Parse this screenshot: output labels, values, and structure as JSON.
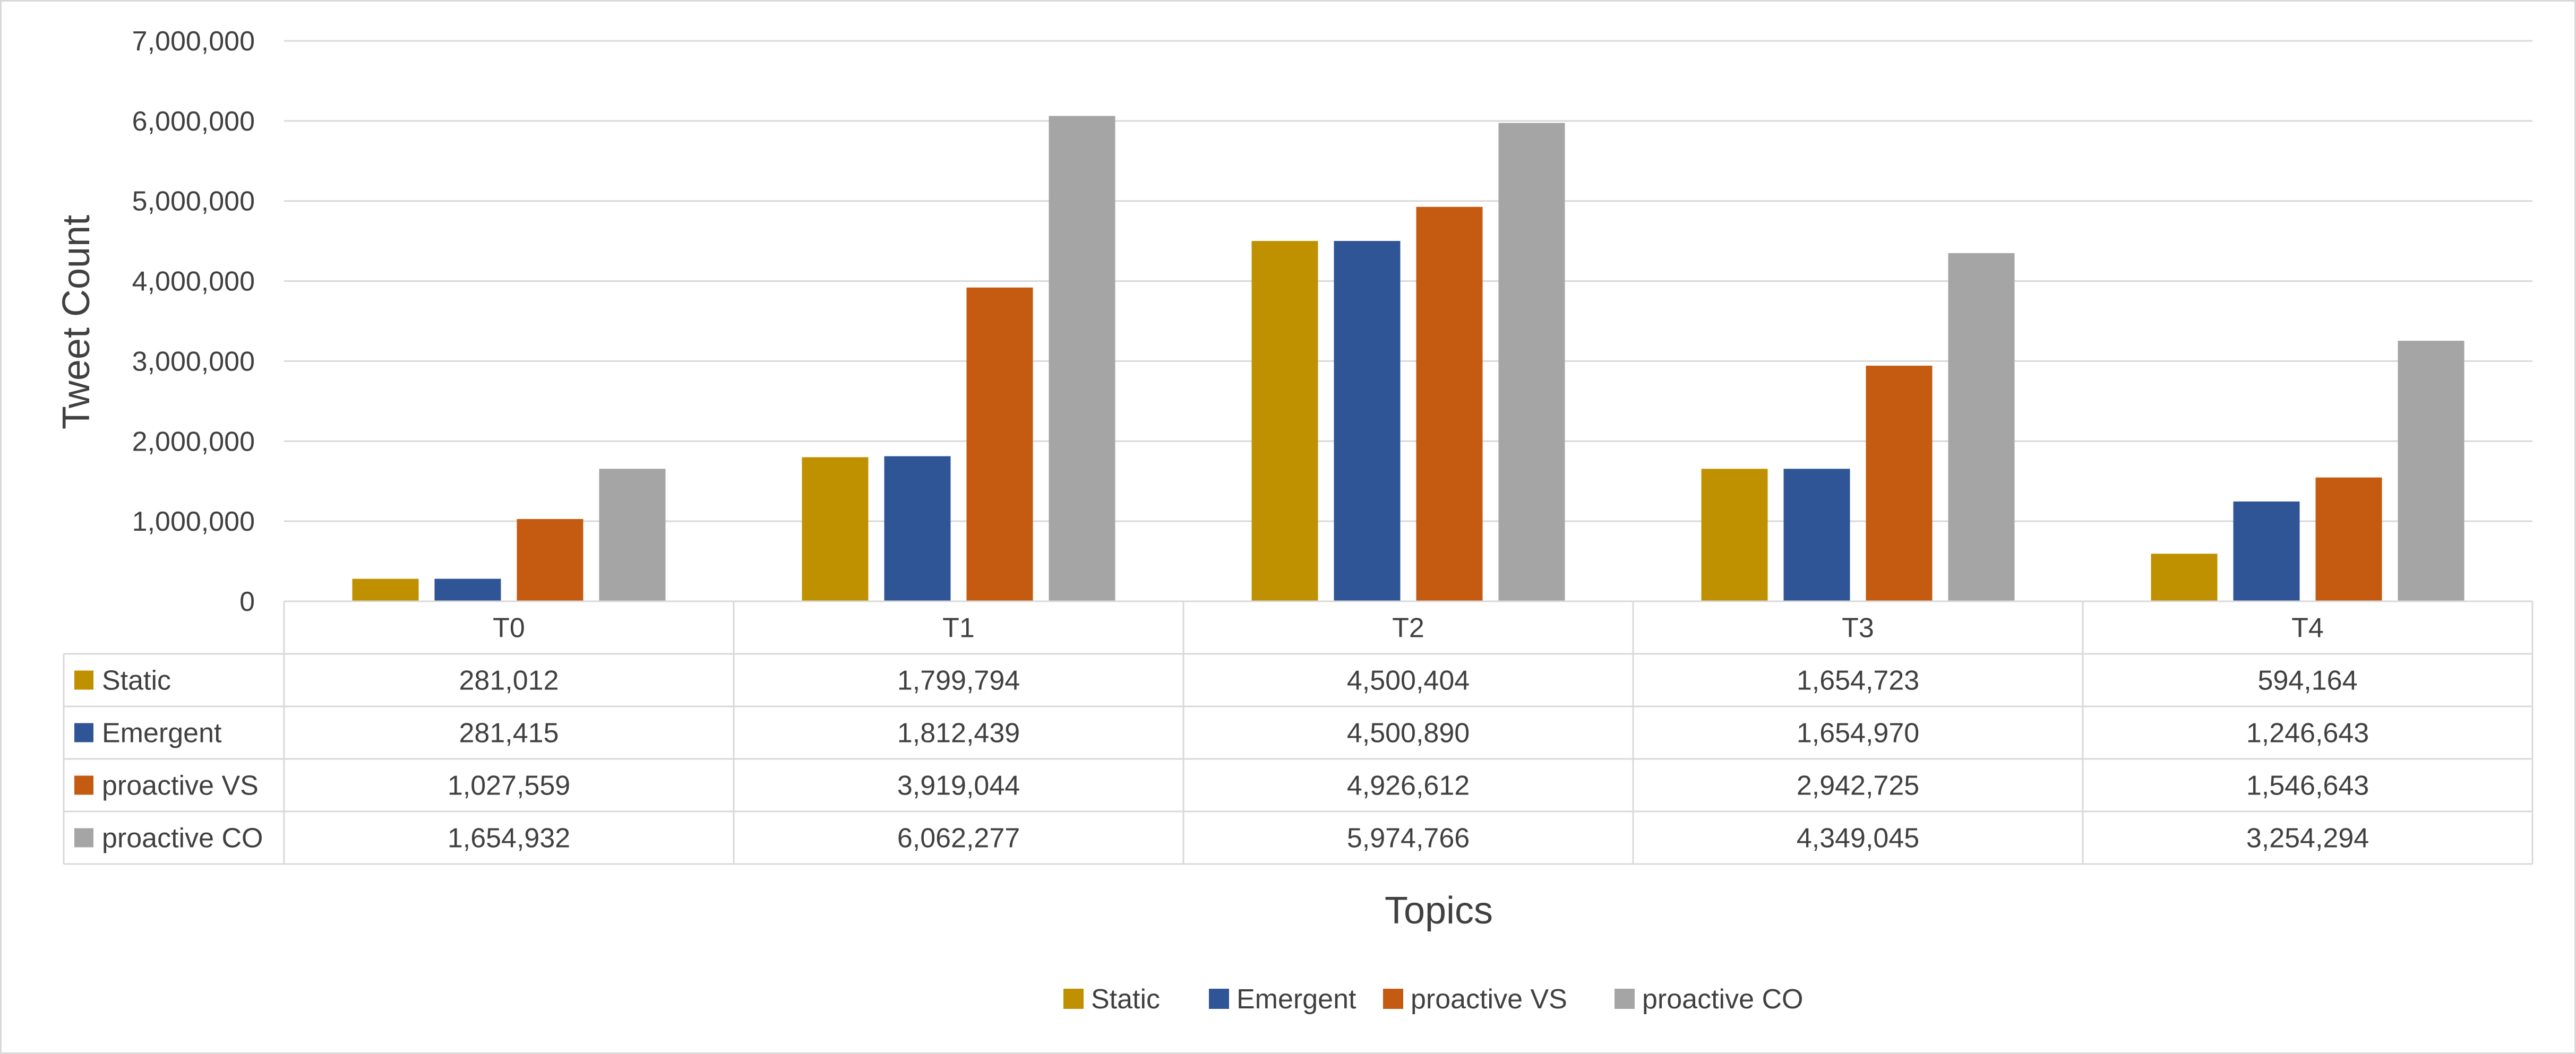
{
  "chart_data": {
    "type": "bar",
    "title": "",
    "xlabel": "Topics",
    "ylabel": "Tweet Count",
    "ylim": [
      0,
      7000000
    ],
    "ytick_step": 1000000,
    "ytick_labels": [
      "0",
      "1,000,000",
      "2,000,000",
      "3,000,000",
      "4,000,000",
      "5,000,000",
      "6,000,000",
      "7,000,000"
    ],
    "grid": true,
    "legend_position": "bottom",
    "data_table": true,
    "categories": [
      "T0",
      "T1",
      "T2",
      "T3",
      "T4"
    ],
    "series": [
      {
        "name": "Static",
        "color": "#bf9000",
        "values": [
          281012,
          1799794,
          4500404,
          1654723,
          594164
        ],
        "labels": [
          "281,012",
          "1,799,794",
          "4,500,404",
          "1,654,723",
          "594,164"
        ]
      },
      {
        "name": "Emergent",
        "color": "#2f5597",
        "values": [
          281415,
          1812439,
          4500890,
          1654970,
          1246643
        ],
        "labels": [
          "281,415",
          "1,812,439",
          "4,500,890",
          "1,654,970",
          "1,246,643"
        ]
      },
      {
        "name": "proactive VS",
        "color": "#c55a11",
        "values": [
          1027559,
          3919044,
          4926612,
          2942725,
          1546643
        ],
        "labels": [
          "1,027,559",
          "3,919,044",
          "4,926,612",
          "2,942,725",
          "1,546,643"
        ]
      },
      {
        "name": "proactive CO",
        "color": "#a5a5a5",
        "values": [
          1654932,
          6062277,
          5974766,
          4349045,
          3254294
        ],
        "labels": [
          "1,654,932",
          "6,062,277",
          "5,974,766",
          "4,349,045",
          "3,254,294"
        ]
      }
    ]
  }
}
